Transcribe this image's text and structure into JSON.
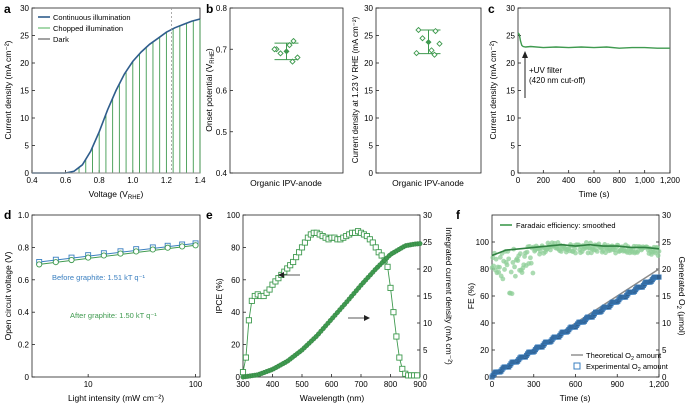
{
  "colors": {
    "dark_blue": "#2f5d8c",
    "mid_blue": "#3a7fc0",
    "green": "#3f9a4f",
    "light_green": "#8fcf98",
    "gray": "#8a8a8a",
    "black": "#222222"
  },
  "chart_data": [
    {
      "panel": "a",
      "type": "line",
      "xlabel_pre": "Voltage (V",
      "xlabel_sub": "RHE",
      "xlabel_post": ")",
      "ylabel": "Current density (mA cm⁻²)",
      "xlim": [
        0.4,
        1.4
      ],
      "ylim": [
        0,
        30
      ],
      "xticks": [
        "0.4",
        "0.6",
        "0.8",
        "1.0",
        "1.2",
        "1.4"
      ],
      "yticks": [
        "0",
        "5",
        "10",
        "15",
        "20",
        "25",
        "30"
      ],
      "legend": [
        "Continuous illumination",
        "Chopped illumination",
        "Dark"
      ],
      "vline_x": 1.23,
      "continuous": {
        "x": [
          0.4,
          0.6,
          0.65,
          0.7,
          0.75,
          0.8,
          0.85,
          0.9,
          0.95,
          1.0,
          1.05,
          1.1,
          1.15,
          1.2,
          1.25,
          1.3,
          1.35,
          1.4
        ],
        "y": [
          0,
          0,
          0.3,
          1.5,
          4,
          7.5,
          11.5,
          15,
          18,
          20.3,
          22,
          23.4,
          24.5,
          25.6,
          26.4,
          27,
          27.6,
          28
        ]
      },
      "dark": {
        "x": [
          0.4,
          1.4
        ],
        "y": [
          0,
          0
        ]
      },
      "chopped_x": [
        0.68,
        0.72,
        0.76,
        0.8,
        0.84,
        0.88,
        0.92,
        0.96,
        1.0,
        1.04,
        1.08,
        1.12,
        1.16,
        1.2,
        1.24,
        1.28,
        1.32,
        1.36,
        1.4
      ]
    },
    {
      "panel": "b1",
      "type": "scatter",
      "ylabel_pre": "Onset potential (V",
      "ylabel_sub": "RHE",
      "ylabel_post": ")",
      "xtick": "Organic IPV-anode",
      "ylim": [
        0.4,
        0.8
      ],
      "yticks": [
        "0.4",
        "0.5",
        "0.6",
        "0.7",
        "0.8"
      ],
      "points": [
        0.7,
        0.72,
        0.69,
        0.68,
        0.71,
        0.7,
        0.67
      ],
      "mean": 0.695,
      "error": [
        0.675,
        0.715
      ]
    },
    {
      "panel": "b2",
      "type": "scatter",
      "ylabel": "Current density at 1.23 V RHE (mA cm⁻²)",
      "xtick": "Organic IPV-anode",
      "ylim": [
        0,
        30
      ],
      "yticks": [
        "0",
        "5",
        "10",
        "15",
        "20",
        "25",
        "30"
      ],
      "points": [
        26.0,
        25.8,
        24.5,
        23.5,
        22.3,
        21.8,
        21.5
      ],
      "mean": 23.8,
      "error": [
        21.7,
        26.0
      ]
    },
    {
      "panel": "c",
      "type": "line",
      "xlabel": "Time (s)",
      "ylabel": "Current density (mA cm⁻²)",
      "xlim": [
        0,
        1200
      ],
      "ylim": [
        0,
        30
      ],
      "xticks": [
        "0",
        "200",
        "400",
        "600",
        "800",
        "1,000",
        "1,200"
      ],
      "yticks": [
        "0",
        "5",
        "10",
        "15",
        "20",
        "25",
        "30"
      ],
      "annotation": [
        "+UV filter",
        "(420 nm cut-off)"
      ],
      "x": [
        0,
        10,
        20,
        30,
        40,
        60,
        100,
        200,
        300,
        400,
        500,
        600,
        700,
        800,
        900,
        1000,
        1100,
        1200
      ],
      "y": [
        25.5,
        25.2,
        24,
        23.2,
        23,
        22.9,
        23,
        22.8,
        22.9,
        22.8,
        22.9,
        22.8,
        22.9,
        22.7,
        22.8,
        22.8,
        22.7,
        22.7
      ]
    },
    {
      "panel": "d",
      "type": "scatter",
      "xlabel": "Light intensity (mW cm⁻²)",
      "ylabel": "Open circuit voltage (V)",
      "xscale": "log",
      "xlim": [
        3,
        110
      ],
      "ylim": [
        0,
        1.0
      ],
      "xticks": [
        "10",
        "100"
      ],
      "yticks": [
        "0",
        "0.2",
        "0.4",
        "0.6",
        "0.8",
        "1.0"
      ],
      "before_label": "Before graphite: 1.51 kT q⁻¹",
      "after_label": "After graphite: 1.50 kT q⁻¹",
      "before": {
        "x": [
          3.5,
          5,
          7,
          10,
          14,
          20,
          28,
          40,
          55,
          75,
          100
        ],
        "y": [
          0.71,
          0.724,
          0.737,
          0.752,
          0.764,
          0.776,
          0.789,
          0.8,
          0.81,
          0.818,
          0.825
        ]
      },
      "after": {
        "x": [
          3.5,
          5,
          7,
          10,
          14,
          20,
          28,
          40,
          55,
          75,
          100
        ],
        "y": [
          0.695,
          0.709,
          0.722,
          0.737,
          0.75,
          0.762,
          0.775,
          0.787,
          0.798,
          0.806,
          0.813
        ]
      }
    },
    {
      "panel": "e",
      "type": "scatter",
      "xlabel": "Wavelength (nm)",
      "ylabel": "IPCE (%)",
      "ylabel2": "Integrated current density (mA cm⁻²)",
      "xlim": [
        300,
        900
      ],
      "ylim": [
        0,
        100
      ],
      "ylim2": [
        0,
        30
      ],
      "xticks": [
        "300",
        "400",
        "500",
        "600",
        "700",
        "800",
        "900"
      ],
      "yticks": [
        "0",
        "20",
        "40",
        "60",
        "80",
        "100"
      ],
      "yticks2": [
        "0",
        "5",
        "10",
        "15",
        "20",
        "25",
        "30"
      ],
      "ipce": {
        "x": [
          300,
          310,
          320,
          330,
          340,
          350,
          360,
          370,
          380,
          390,
          400,
          410,
          420,
          430,
          440,
          450,
          460,
          470,
          480,
          490,
          500,
          510,
          520,
          530,
          540,
          550,
          560,
          570,
          580,
          590,
          600,
          610,
          620,
          630,
          640,
          650,
          660,
          670,
          680,
          690,
          700,
          710,
          720,
          730,
          740,
          750,
          760,
          770,
          780,
          790,
          800,
          810,
          820,
          830,
          840,
          850,
          860,
          870,
          880,
          890
        ],
        "y": [
          3,
          12,
          35,
          47,
          50,
          51,
          50,
          50,
          52,
          54,
          57,
          59,
          61,
          63,
          65,
          67,
          69,
          71,
          74,
          77,
          80,
          83,
          86,
          88,
          89,
          89,
          88,
          87,
          86,
          85,
          86,
          86,
          85,
          85,
          86,
          87,
          88,
          89,
          89,
          90,
          89,
          88,
          87,
          85,
          83,
          80,
          77,
          75,
          72,
          68,
          55,
          40,
          25,
          12,
          5,
          2,
          1,
          1,
          1,
          1
        ]
      },
      "integrated": {
        "x": [
          300,
          350,
          400,
          450,
          500,
          550,
          600,
          650,
          700,
          750,
          800,
          850,
          880,
          900
        ],
        "y": [
          0,
          0.4,
          1.4,
          2.9,
          5,
          7.6,
          10.7,
          13.8,
          17,
          20,
          22.7,
          24.3,
          24.6,
          24.7
        ]
      }
    },
    {
      "panel": "f",
      "type": "scatter",
      "xlabel": "Time (s)",
      "ylabel": "FE (%)",
      "ylabel2_pre": "Generated O",
      "ylabel2_sub": "2",
      "ylabel2_post": " (μmol)",
      "xlim": [
        0,
        1200
      ],
      "ylim": [
        0,
        120
      ],
      "ylim2": [
        0,
        30
      ],
      "xticks": [
        "0",
        "300",
        "600",
        "900",
        "1,200"
      ],
      "yticks": [
        "0",
        "20",
        "40",
        "60",
        "80",
        "100"
      ],
      "yticks2": [
        "0",
        "5",
        "10",
        "15",
        "20",
        "25",
        "30"
      ],
      "smoothed_label": "Faradaic efficiency: smoothed",
      "theory_label_pre": "Theoretical O",
      "theory_label_post": " amount",
      "exp_label_pre": "Experimental O",
      "exp_label_post": " amount",
      "fe_smoothed": {
        "x": [
          0,
          100,
          200,
          300,
          400,
          500,
          600,
          700,
          800,
          900,
          1000,
          1100,
          1200
        ],
        "y": [
          90,
          94,
          95,
          96,
          97,
          98,
          97,
          98,
          97,
          97,
          96,
          96,
          95
        ]
      },
      "theoretical": {
        "x": [
          0,
          1200
        ],
        "y": [
          0,
          20
        ]
      },
      "experimental_end": 18.5
    }
  ]
}
